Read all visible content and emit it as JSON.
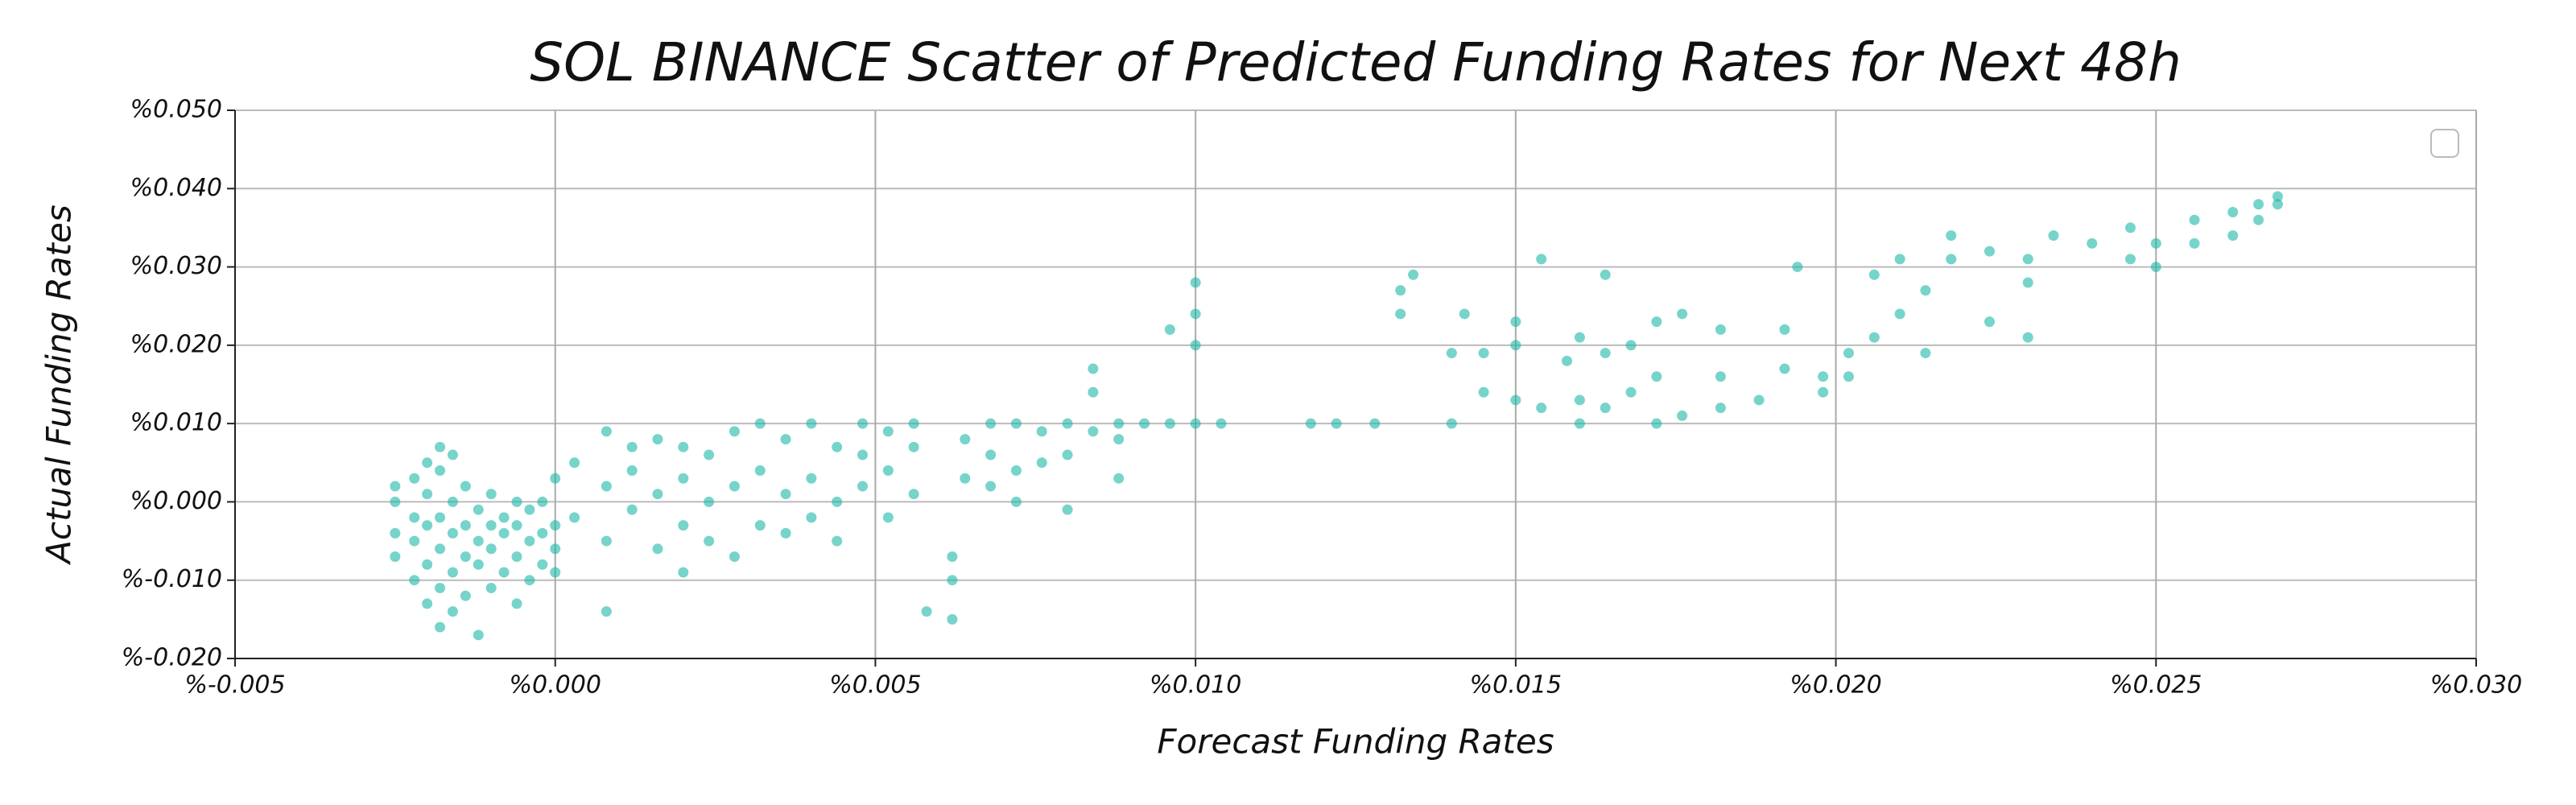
{
  "chart_data": {
    "type": "scatter",
    "title": "SOL BINANCE Scatter of Predicted Funding Rates for Next 48h",
    "x_label": "Forecast Funding Rates",
    "y_label": "Actual Funding Rates",
    "color": "#1ab8a6",
    "grid": true,
    "xlim": [
      -0.005,
      0.03
    ],
    "ylim": [
      -0.02,
      0.05
    ],
    "xticks": [
      {
        "value": -0.005,
        "label": "%-0.005"
      },
      {
        "value": 0.0,
        "label": "%0.000"
      },
      {
        "value": 0.005,
        "label": "%0.005"
      },
      {
        "value": 0.01,
        "label": "%0.010"
      },
      {
        "value": 0.015,
        "label": "%0.015"
      },
      {
        "value": 0.02,
        "label": "%0.020"
      },
      {
        "value": 0.025,
        "label": "%0.025"
      },
      {
        "value": 0.03,
        "label": "%0.030"
      }
    ],
    "yticks": [
      {
        "value": -0.02,
        "label": "%-0.020"
      },
      {
        "value": -0.01,
        "label": "%-0.010"
      },
      {
        "value": 0.0,
        "label": "%0.000"
      },
      {
        "value": 0.01,
        "label": "%0.010"
      },
      {
        "value": 0.02,
        "label": "%0.020"
      },
      {
        "value": 0.03,
        "label": "%0.030"
      },
      {
        "value": 0.04,
        "label": "%0.040"
      },
      {
        "value": 0.05,
        "label": "%0.050"
      }
    ],
    "x": [
      -0.0025,
      -0.0025,
      -0.0025,
      -0.0025,
      -0.0022,
      -0.0022,
      -0.0022,
      -0.0022,
      -0.002,
      -0.002,
      -0.002,
      -0.002,
      -0.002,
      -0.0018,
      -0.0018,
      -0.0018,
      -0.0018,
      -0.0018,
      -0.0018,
      -0.0016,
      -0.0016,
      -0.0016,
      -0.0016,
      -0.0016,
      -0.0014,
      -0.0014,
      -0.0014,
      -0.0014,
      -0.0012,
      -0.0012,
      -0.0012,
      -0.0012,
      -0.001,
      -0.001,
      -0.001,
      -0.001,
      -0.0008,
      -0.0008,
      -0.0008,
      -0.0006,
      -0.0006,
      -0.0006,
      -0.0006,
      -0.0004,
      -0.0004,
      -0.0004,
      -0.0002,
      -0.0002,
      -0.0002,
      0.0,
      0.0,
      0.0,
      0.0,
      0.0003,
      0.0003,
      0.0008,
      0.0008,
      0.0008,
      0.0008,
      0.0012,
      0.0012,
      0.0012,
      0.0016,
      0.0016,
      0.0016,
      0.002,
      0.002,
      0.002,
      0.002,
      0.0024,
      0.0024,
      0.0024,
      0.0028,
      0.0028,
      0.0028,
      0.0032,
      0.0032,
      0.0032,
      0.0036,
      0.0036,
      0.0036,
      0.004,
      0.004,
      0.004,
      0.0044,
      0.0044,
      0.0044,
      0.0048,
      0.0048,
      0.0048,
      0.0052,
      0.0052,
      0.0052,
      0.0056,
      0.0056,
      0.0056,
      0.0058,
      0.0062,
      0.0062,
      0.0062,
      0.0064,
      0.0064,
      0.0068,
      0.0068,
      0.0068,
      0.0072,
      0.0072,
      0.0072,
      0.0076,
      0.0076,
      0.008,
      0.008,
      0.008,
      0.0084,
      0.0084,
      0.0084,
      0.0088,
      0.0088,
      0.0088,
      0.0092,
      0.0096,
      0.0096,
      0.01,
      0.01,
      0.01,
      0.01,
      0.0104,
      0.0118,
      0.0122,
      0.0128,
      0.0132,
      0.0132,
      0.0134,
      0.014,
      0.014,
      0.0142,
      0.0145,
      0.0145,
      0.015,
      0.015,
      0.015,
      0.0154,
      0.0154,
      0.0158,
      0.016,
      0.016,
      0.016,
      0.0164,
      0.0164,
      0.0164,
      0.0168,
      0.0168,
      0.0172,
      0.0172,
      0.0172,
      0.0176,
      0.0176,
      0.0182,
      0.0182,
      0.0182,
      0.0188,
      0.0192,
      0.0192,
      0.0194,
      0.0198,
      0.0198,
      0.0202,
      0.0202,
      0.0206,
      0.0206,
      0.021,
      0.021,
      0.0214,
      0.0214,
      0.0218,
      0.0218,
      0.0224,
      0.0224,
      0.023,
      0.023,
      0.023,
      0.0234,
      0.024,
      0.0246,
      0.0246,
      0.025,
      0.025,
      0.0256,
      0.0256,
      0.0262,
      0.0262,
      0.0266,
      0.0266,
      0.0269,
      0.0269
    ],
    "values": [
      -0.007,
      -0.004,
      0.0,
      0.002,
      -0.01,
      -0.005,
      -0.002,
      0.003,
      -0.013,
      -0.008,
      -0.003,
      0.001,
      0.005,
      -0.016,
      -0.011,
      -0.006,
      -0.002,
      0.004,
      0.007,
      -0.014,
      -0.009,
      -0.004,
      0.0,
      0.006,
      -0.012,
      -0.007,
      -0.003,
      0.002,
      -0.017,
      -0.008,
      -0.005,
      -0.001,
      -0.011,
      -0.006,
      -0.003,
      0.001,
      -0.009,
      -0.004,
      -0.002,
      -0.013,
      -0.007,
      -0.003,
      0.0,
      -0.01,
      -0.005,
      -0.001,
      -0.008,
      -0.004,
      0.0,
      -0.009,
      -0.006,
      -0.003,
      0.003,
      0.005,
      -0.002,
      -0.014,
      -0.005,
      0.002,
      0.009,
      -0.001,
      0.004,
      0.007,
      -0.006,
      0.001,
      0.008,
      -0.009,
      -0.003,
      0.003,
      0.007,
      -0.005,
      0.0,
      0.006,
      -0.007,
      0.002,
      0.009,
      -0.003,
      0.004,
      0.01,
      -0.004,
      0.001,
      0.008,
      -0.002,
      0.003,
      0.01,
      -0.005,
      0.0,
      0.007,
      0.002,
      0.006,
      0.01,
      -0.002,
      0.004,
      0.009,
      0.001,
      0.007,
      0.01,
      -0.014,
      -0.015,
      -0.01,
      -0.007,
      0.003,
      0.008,
      0.002,
      0.006,
      0.01,
      0.0,
      0.004,
      0.01,
      0.005,
      0.009,
      -0.001,
      0.006,
      0.01,
      0.009,
      0.014,
      0.017,
      0.003,
      0.008,
      0.01,
      0.01,
      0.01,
      0.022,
      0.01,
      0.02,
      0.024,
      0.028,
      0.01,
      0.01,
      0.01,
      0.01,
      0.024,
      0.027,
      0.029,
      0.01,
      0.019,
      0.024,
      0.014,
      0.019,
      0.013,
      0.02,
      0.023,
      0.012,
      0.031,
      0.018,
      0.01,
      0.013,
      0.021,
      0.012,
      0.019,
      0.029,
      0.014,
      0.02,
      0.01,
      0.016,
      0.023,
      0.011,
      0.024,
      0.012,
      0.016,
      0.022,
      0.013,
      0.017,
      0.022,
      0.03,
      0.016,
      0.014,
      0.019,
      0.016,
      0.021,
      0.029,
      0.024,
      0.031,
      0.019,
      0.027,
      0.031,
      0.034,
      0.023,
      0.032,
      0.021,
      0.028,
      0.031,
      0.034,
      0.033,
      0.031,
      0.035,
      0.03,
      0.033,
      0.033,
      0.036,
      0.034,
      0.037,
      0.036,
      0.038,
      0.038,
      0.039
    ]
  }
}
